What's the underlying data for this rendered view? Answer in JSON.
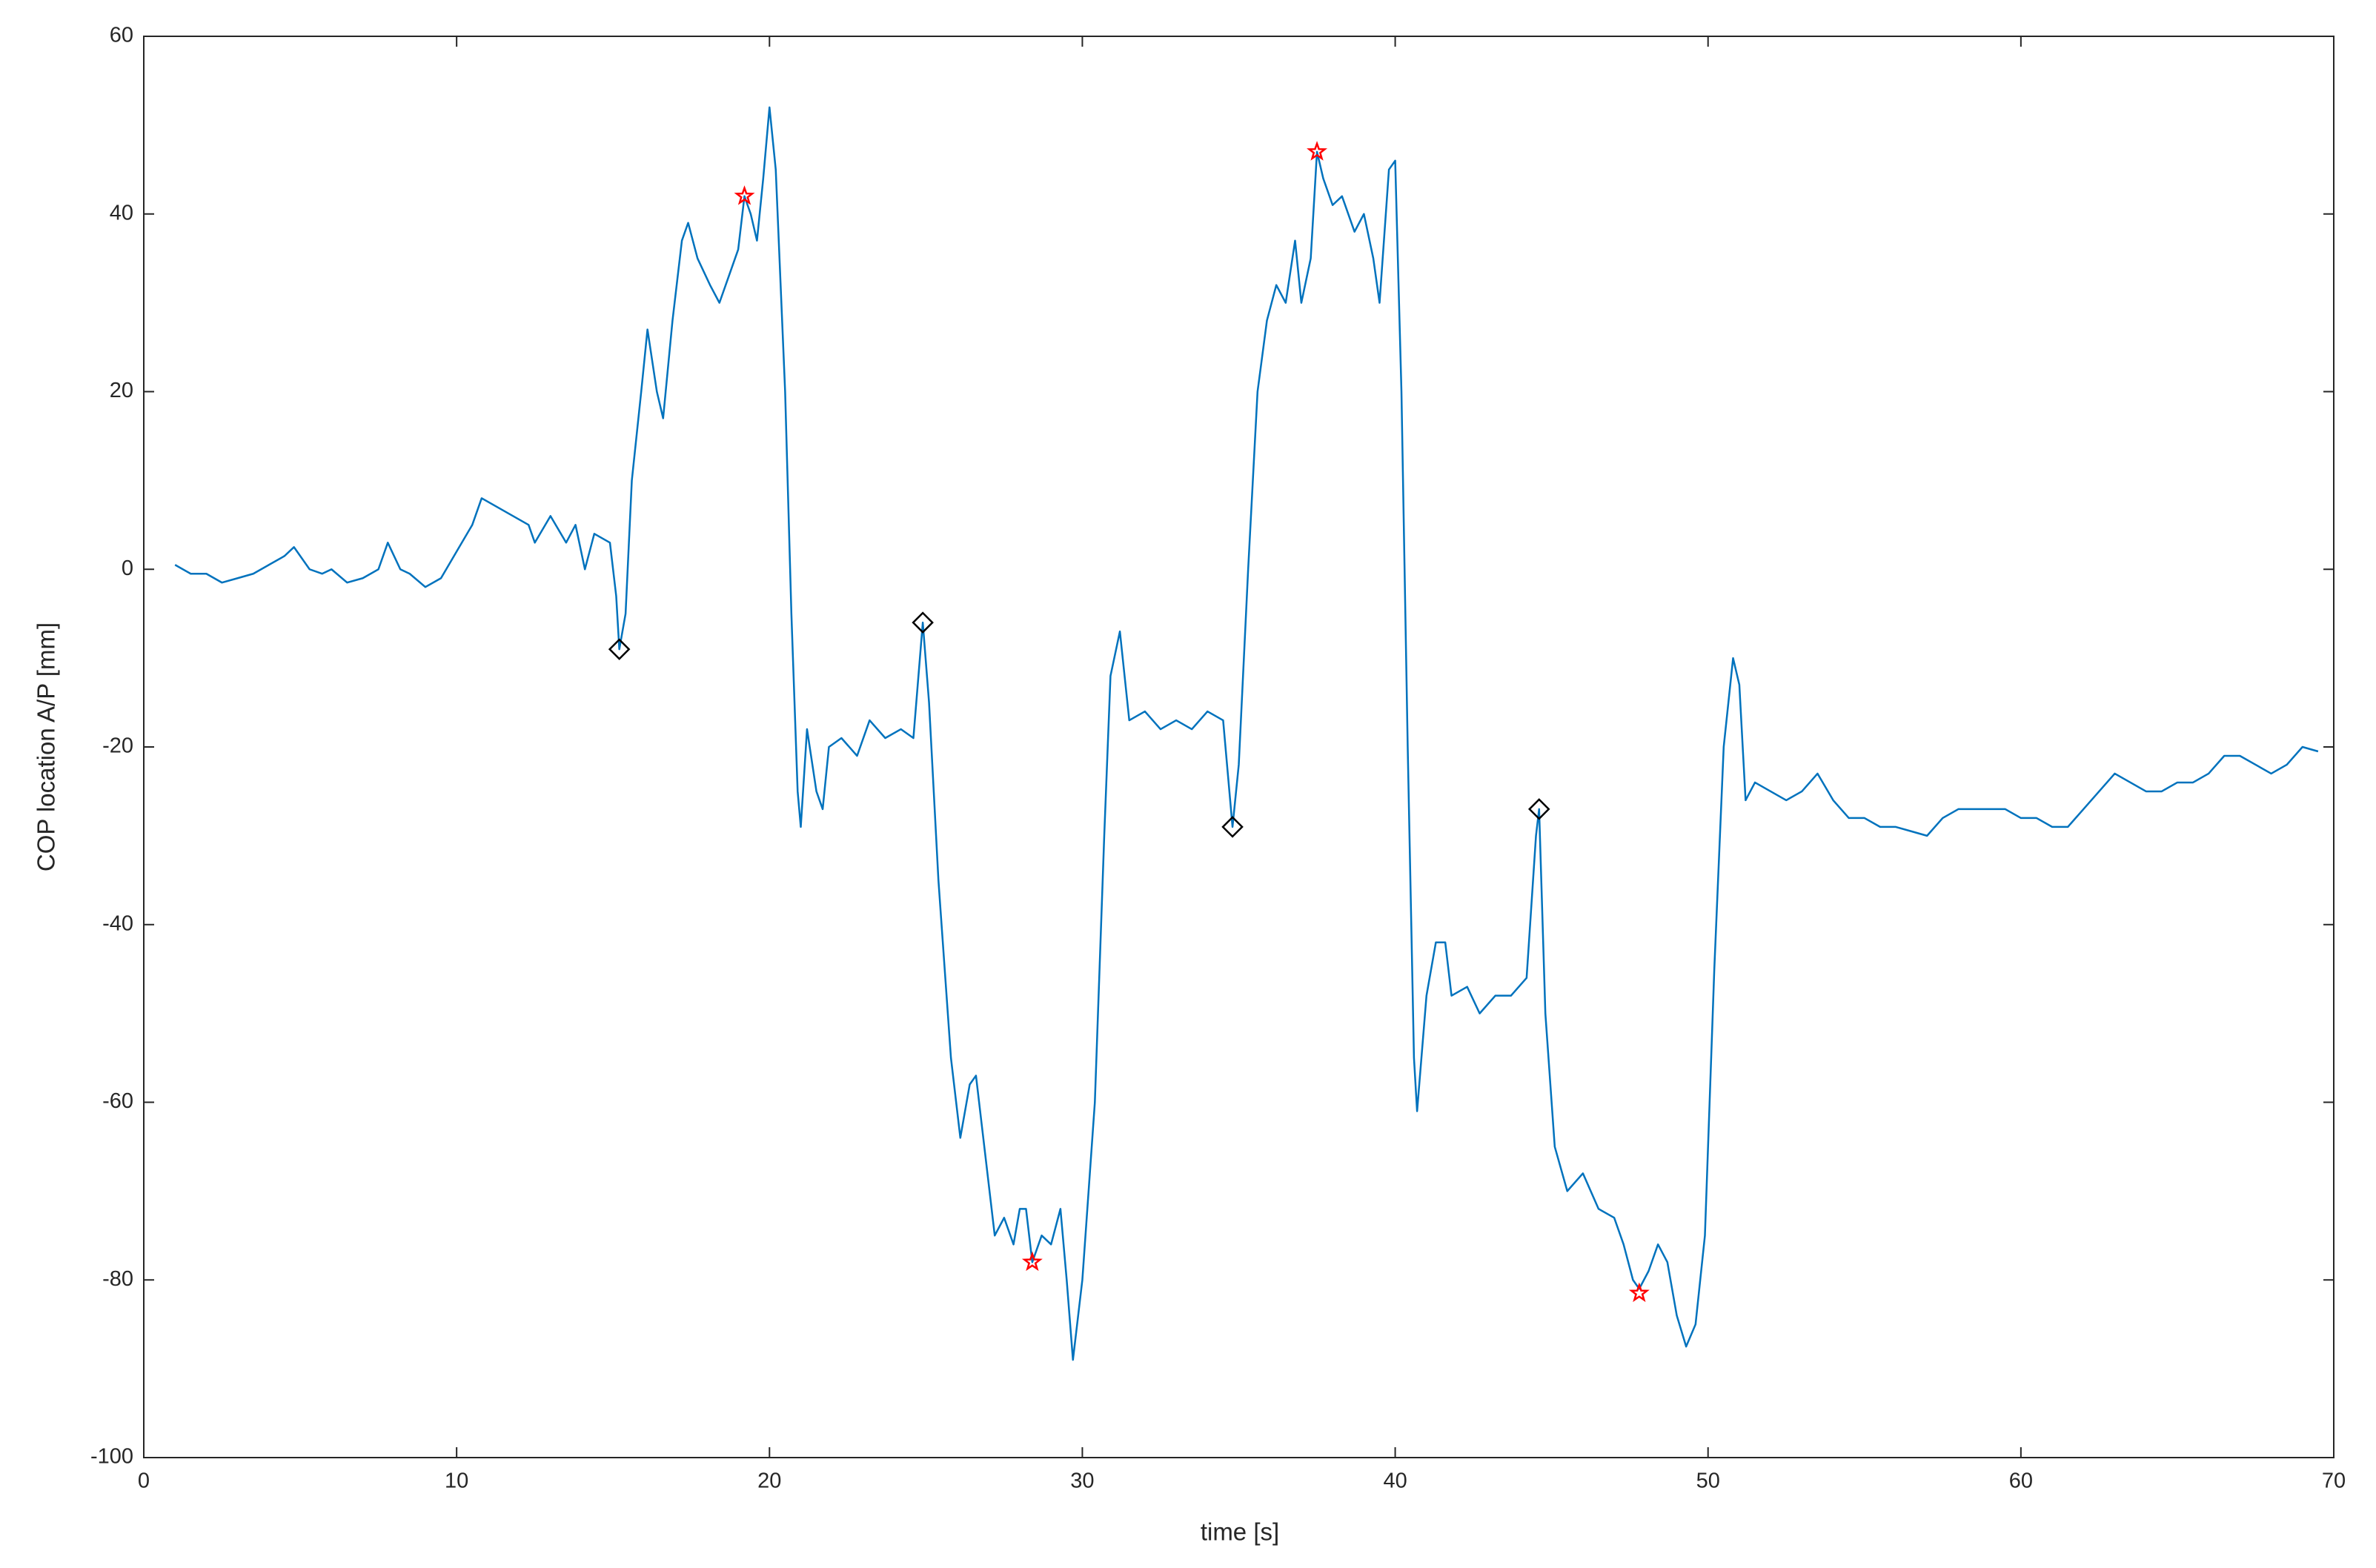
{
  "chart_data": {
    "type": "line",
    "xlabel": "time [s]",
    "ylabel": "COP location A/P [mm]",
    "xlim": [
      0,
      70
    ],
    "ylim": [
      -100,
      60
    ],
    "xticks": [
      0,
      10,
      20,
      30,
      40,
      50,
      60,
      70
    ],
    "yticks": [
      -100,
      -80,
      -60,
      -40,
      -20,
      0,
      20,
      40,
      60
    ],
    "grid": false,
    "x": [
      1,
      1.5,
      2,
      2.5,
      3,
      3.5,
      4,
      4.5,
      4.8,
      5.3,
      5.7,
      6,
      6.5,
      7,
      7.5,
      7.8,
      8.2,
      8.5,
      9,
      9.5,
      10,
      10.5,
      10.8,
      11.3,
      11.8,
      12.3,
      12.5,
      13,
      13.5,
      13.8,
      14.1,
      14.4,
      14.9,
      15.1,
      15.2,
      15.4,
      15.6,
      15.9,
      16.1,
      16.4,
      16.6,
      16.9,
      17.2,
      17.4,
      17.7,
      18.1,
      18.4,
      18.7,
      19,
      19.2,
      19.4,
      19.6,
      19.8,
      20,
      20.2,
      20.5,
      20.7,
      20.9,
      21,
      21.2,
      21.5,
      21.7,
      21.9,
      22.3,
      22.8,
      23.2,
      23.7,
      24.2,
      24.6,
      24.9,
      25.1,
      25.4,
      25.8,
      26.1,
      26.4,
      26.6,
      26.9,
      27.2,
      27.5,
      27.8,
      28,
      28.2,
      28.4,
      28.7,
      29,
      29.3,
      29.5,
      29.7,
      30,
      30.4,
      30.7,
      30.9,
      31.2,
      31.5,
      32,
      32.5,
      33,
      33.5,
      34,
      34.5,
      34.8,
      35,
      35.3,
      35.6,
      35.9,
      36.2,
      36.5,
      36.8,
      37,
      37.3,
      37.5,
      37.7,
      38,
      38.3,
      38.7,
      39,
      39.3,
      39.5,
      39.8,
      40,
      40.2,
      40.4,
      40.6,
      40.7,
      41,
      41.3,
      41.6,
      41.8,
      42.3,
      42.7,
      43.2,
      43.7,
      44.2,
      44.5,
      44.6,
      44.8,
      45.1,
      45.5,
      46,
      46.5,
      47,
      47.3,
      47.6,
      47.8,
      48.1,
      48.4,
      48.7,
      49,
      49.3,
      49.6,
      49.9,
      50.2,
      50.5,
      50.8,
      51,
      51.2,
      51.5,
      52,
      52.5,
      53,
      53.5,
      54,
      54.5,
      55,
      55.5,
      56,
      56.5,
      57,
      57.5,
      58,
      58.5,
      59,
      59.5,
      60,
      60.5,
      61,
      61.5,
      62,
      62.5,
      63,
      63.5,
      64,
      64.5,
      65,
      65.5,
      66,
      66.5,
      67,
      67.5,
      68,
      68.5,
      69,
      69.5
    ],
    "series": [
      {
        "color": "#0072bd",
        "line": true,
        "values": [
          0.5,
          -0.5,
          -0.5,
          -1.5,
          -1,
          -0.5,
          0.5,
          1.5,
          2.5,
          0,
          -0.5,
          0,
          -1.5,
          -1,
          0,
          3,
          0,
          -0.5,
          -2,
          -1,
          2,
          5,
          8,
          7,
          6,
          5,
          3,
          6,
          3,
          5,
          0,
          4,
          3,
          -3,
          -9,
          -5,
          10,
          20,
          27,
          20,
          17,
          28,
          37,
          39,
          35,
          32,
          30,
          33,
          36,
          42,
          40,
          37,
          44,
          52,
          45,
          20,
          -5,
          -25,
          -29,
          -18,
          -25,
          -27,
          -20,
          -19,
          -21,
          -17,
          -19,
          -18,
          -19,
          -6,
          -15,
          -35,
          -55,
          -64,
          -58,
          -57,
          -66,
          -75,
          -73,
          -76,
          -72,
          -72,
          -78,
          -75,
          -76,
          -72,
          -80,
          -89,
          -80,
          -60,
          -30,
          -12,
          -7,
          -17,
          -16,
          -18,
          -17,
          -18,
          -16,
          -17,
          -29,
          -22,
          0,
          20,
          28,
          32,
          30,
          37,
          30,
          35,
          47,
          44,
          41,
          42,
          38,
          40,
          35,
          30,
          45,
          46,
          20,
          -20,
          -55,
          -61,
          -48,
          -42,
          -42,
          -48,
          -47,
          -50,
          -48,
          -48,
          -46,
          -30,
          -27,
          -50,
          -65,
          -70,
          -68,
          -72,
          -73,
          -76,
          -80,
          -81,
          -79,
          -76,
          -78,
          -84,
          -87.5,
          -85,
          -75,
          -45,
          -20,
          -10,
          -13,
          -26,
          -24,
          -25,
          -26,
          -25,
          -23,
          -26,
          -28,
          -28,
          -29,
          -29,
          -29.5,
          -30,
          -28,
          -27,
          -27,
          -27,
          -27,
          -28,
          -28,
          -29,
          -29,
          -27,
          -25,
          -23,
          -24,
          -25,
          -25,
          -24,
          -24,
          -23,
          -21,
          -21,
          -22,
          -23,
          -22,
          -20,
          -20.5
        ]
      },
      {
        "color": "#000000",
        "line": false,
        "marker": "diamond",
        "x": [
          15.2,
          24.9,
          34.8,
          44.6
        ],
        "values": [
          -9,
          -6,
          -29,
          -27
        ]
      },
      {
        "color": "#ff0000",
        "line": false,
        "marker": "star",
        "x": [
          19.2,
          28.4,
          37.5,
          47.8
        ],
        "values": [
          42,
          -78,
          47,
          -81.5
        ]
      }
    ]
  }
}
